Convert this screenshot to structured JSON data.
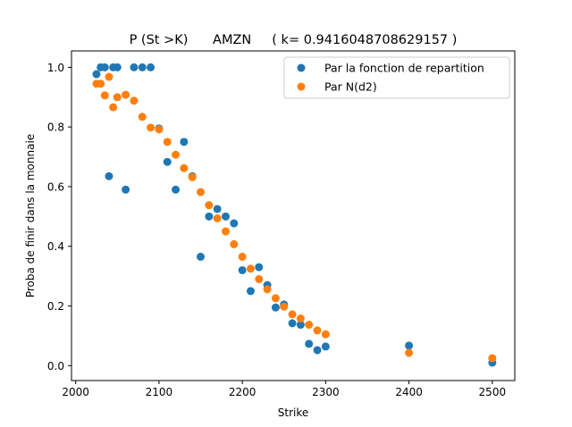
{
  "chart_data": {
    "type": "scatter",
    "title": "P (St >K)      AMZN     ( k= 0.9416048708629157 )",
    "xlabel": "Strike",
    "ylabel": "Proba de finir dans la monnaie",
    "xlim": [
      1995,
      2527
    ],
    "ylim": [
      -0.05,
      1.055
    ],
    "xticks": [
      2000,
      2100,
      2200,
      2300,
      2400,
      2500
    ],
    "xtick_labels": [
      "2000",
      "2100",
      "2200",
      "2300",
      "2400",
      "2500"
    ],
    "yticks": [
      0.0,
      0.2,
      0.4,
      0.6,
      0.8,
      1.0
    ],
    "ytick_labels": [
      "0.0",
      "0.2",
      "0.4",
      "0.6",
      "0.8",
      "1.0"
    ],
    "grid": false,
    "legend_position": "top-right",
    "series": [
      {
        "name": "Par la fonction de repartition",
        "color": "#1f77b4",
        "points": [
          [
            2025,
            0.977
          ],
          [
            2030,
            1.0
          ],
          [
            2035,
            1.0
          ],
          [
            2040,
            0.635
          ],
          [
            2045,
            1.0
          ],
          [
            2050,
            1.0
          ],
          [
            2060,
            0.59
          ],
          [
            2070,
            1.0
          ],
          [
            2080,
            1.0
          ],
          [
            2090,
            1.0
          ],
          [
            2100,
            0.795
          ],
          [
            2110,
            0.683
          ],
          [
            2120,
            0.59
          ],
          [
            2130,
            0.75
          ],
          [
            2140,
            0.635
          ],
          [
            2150,
            0.365
          ],
          [
            2160,
            0.5
          ],
          [
            2170,
            0.525
          ],
          [
            2180,
            0.5
          ],
          [
            2190,
            0.477
          ],
          [
            2200,
            0.32
          ],
          [
            2210,
            0.25
          ],
          [
            2220,
            0.33
          ],
          [
            2230,
            0.27
          ],
          [
            2240,
            0.195
          ],
          [
            2250,
            0.205
          ],
          [
            2260,
            0.142
          ],
          [
            2270,
            0.137
          ],
          [
            2280,
            0.073
          ],
          [
            2290,
            0.052
          ],
          [
            2300,
            0.064
          ],
          [
            2400,
            0.067
          ],
          [
            2500,
            0.01
          ]
        ]
      },
      {
        "name": "Par N(d2)",
        "color": "#ff7f0e",
        "points": [
          [
            2025,
            0.945
          ],
          [
            2030,
            0.945
          ],
          [
            2035,
            0.906
          ],
          [
            2040,
            0.968
          ],
          [
            2045,
            0.866
          ],
          [
            2050,
            0.9
          ],
          [
            2060,
            0.908
          ],
          [
            2070,
            0.888
          ],
          [
            2080,
            0.834
          ],
          [
            2090,
            0.798
          ],
          [
            2100,
            0.792
          ],
          [
            2110,
            0.75
          ],
          [
            2120,
            0.707
          ],
          [
            2130,
            0.662
          ],
          [
            2140,
            0.632
          ],
          [
            2150,
            0.582
          ],
          [
            2160,
            0.538
          ],
          [
            2170,
            0.494
          ],
          [
            2180,
            0.45
          ],
          [
            2190,
            0.407
          ],
          [
            2200,
            0.365
          ],
          [
            2210,
            0.325
          ],
          [
            2220,
            0.29
          ],
          [
            2230,
            0.256
          ],
          [
            2240,
            0.226
          ],
          [
            2250,
            0.198
          ],
          [
            2260,
            0.172
          ],
          [
            2270,
            0.158
          ],
          [
            2280,
            0.137
          ],
          [
            2290,
            0.118
          ],
          [
            2300,
            0.105
          ],
          [
            2400,
            0.043
          ],
          [
            2500,
            0.025
          ]
        ]
      }
    ]
  }
}
